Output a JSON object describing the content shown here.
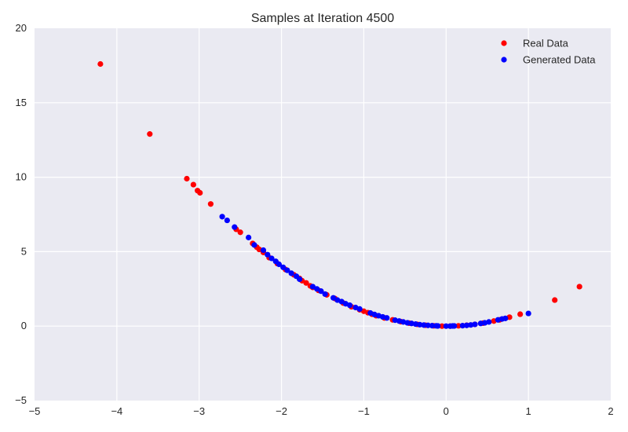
{
  "chart_data": {
    "type": "scatter",
    "title": "Samples at Iteration 4500",
    "xlabel": "",
    "ylabel": "",
    "xlim": [
      -5,
      2
    ],
    "ylim": [
      -5,
      20
    ],
    "xticks": [
      "−5",
      "−4",
      "−3",
      "−2",
      "−1",
      "0",
      "1",
      "2"
    ],
    "yticks": [
      "−5",
      "0",
      "5",
      "10",
      "15",
      "20"
    ],
    "grid": true,
    "legend_position": "top-right",
    "series": [
      {
        "name": "Real Data",
        "color": "#ff0000",
        "x": [
          -4.2,
          -3.6,
          -3.15,
          -3.07,
          -3.02,
          -2.99,
          -2.86,
          -2.55,
          -2.5,
          -2.35,
          -2.3,
          -2.27,
          -2.22,
          -2.15,
          -2.05,
          -1.95,
          -1.85,
          -1.78,
          -1.75,
          -1.7,
          -1.65,
          -1.62,
          -1.55,
          -1.45,
          -1.35,
          -1.25,
          -1.15,
          -1.05,
          -1.0,
          -0.95,
          -0.9,
          -0.85,
          -0.75,
          -0.65,
          -0.55,
          -0.45,
          -0.35,
          -0.25,
          -0.15,
          -0.05,
          0.05,
          0.15,
          0.25,
          0.35,
          0.45,
          0.58,
          0.65,
          0.77,
          0.9,
          1.32,
          1.62
        ],
        "y": [
          17.6,
          12.9,
          9.9,
          9.5,
          9.1,
          8.95,
          8.2,
          6.5,
          6.3,
          5.55,
          5.3,
          5.15,
          4.95,
          4.6,
          4.2,
          3.8,
          3.45,
          3.2,
          3.05,
          2.9,
          2.7,
          2.6,
          2.4,
          2.1,
          1.85,
          1.55,
          1.3,
          1.1,
          1.0,
          0.9,
          0.8,
          0.7,
          0.55,
          0.42,
          0.3,
          0.2,
          0.12,
          0.06,
          0.02,
          0.0,
          0.0,
          0.02,
          0.06,
          0.12,
          0.2,
          0.34,
          0.42,
          0.6,
          0.8,
          1.75,
          2.65
        ]
      },
      {
        "name": "Generated Data",
        "color": "#0000ff",
        "x": [
          -2.72,
          -2.66,
          -2.57,
          -2.4,
          -2.33,
          -2.22,
          -2.17,
          -2.12,
          -2.07,
          -2.03,
          -1.98,
          -1.93,
          -1.88,
          -1.82,
          -1.78,
          -1.62,
          -1.57,
          -1.52,
          -1.47,
          -1.37,
          -1.32,
          -1.27,
          -1.22,
          -1.17,
          -1.1,
          -1.05,
          -0.92,
          -0.87,
          -0.82,
          -0.77,
          -0.72,
          -0.62,
          -0.57,
          -0.52,
          -0.47,
          -0.42,
          -0.37,
          -0.32,
          -0.27,
          -0.22,
          -0.17,
          -0.12,
          -0.1,
          0.0,
          0.05,
          0.08,
          0.1,
          0.2,
          0.25,
          0.3,
          0.35,
          0.42,
          0.47,
          0.52,
          0.63,
          0.68,
          0.72,
          1.0
        ],
        "y": [
          7.35,
          7.1,
          6.65,
          5.95,
          5.45,
          5.1,
          4.8,
          4.55,
          4.35,
          4.15,
          3.95,
          3.75,
          3.55,
          3.35,
          3.15,
          2.65,
          2.5,
          2.35,
          2.15,
          1.9,
          1.75,
          1.65,
          1.5,
          1.4,
          1.25,
          1.15,
          0.88,
          0.78,
          0.7,
          0.62,
          0.55,
          0.4,
          0.34,
          0.28,
          0.22,
          0.18,
          0.14,
          0.1,
          0.07,
          0.05,
          0.03,
          0.02,
          0.01,
          0.0,
          0.0,
          0.01,
          0.01,
          0.03,
          0.05,
          0.08,
          0.12,
          0.18,
          0.22,
          0.28,
          0.42,
          0.48,
          0.52,
          0.85
        ]
      }
    ]
  }
}
